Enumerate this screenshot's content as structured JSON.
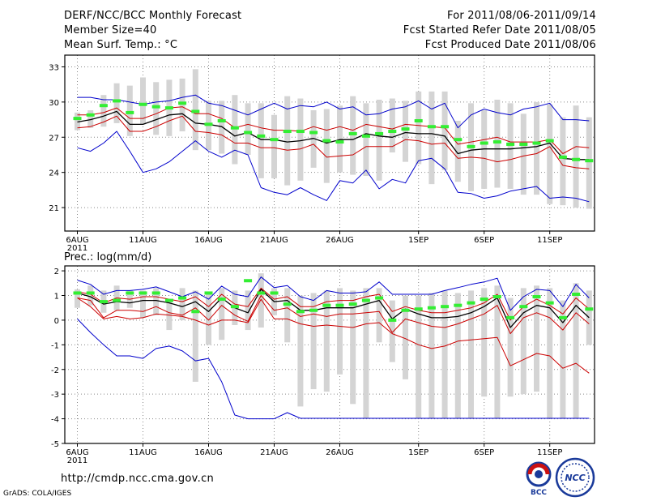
{
  "header": {
    "title": "DERF/NCC/BCC Monthly Forecast",
    "member_size": "Member Size=40",
    "variable": "Mean Surf. Temp.: °C",
    "period": "For 2011/08/06-2011/09/14",
    "started": "Fcst Started Refer Date 2011/08/05",
    "produced": "Fcst Produced Date 2011/08/06"
  },
  "footer": {
    "url": "http://cmdp.ncc.cma.gov.cn",
    "credit": "GrADS: COLA/IGES"
  },
  "logos": {
    "bcc": "BCC",
    "ncc": "NCC"
  },
  "colors": {
    "max_min": "#0000cc",
    "spread": "#cc0000",
    "mean": "#000000",
    "median": "#33ee33",
    "box": "#d4d4d4",
    "grid": "#888888"
  },
  "chart_data": [
    {
      "type": "line",
      "name": "temperature",
      "ylabel": "Mean Surf. Temp.: °C",
      "ylim": [
        19,
        34
      ],
      "yticks": [
        21,
        24,
        27,
        30,
        33
      ],
      "xlim": [
        0,
        39.5
      ],
      "xticks": [
        {
          "day": 0,
          "label": "6AUG",
          "sub": "2011"
        },
        {
          "day": 5,
          "label": "11AUG"
        },
        {
          "day": 10,
          "label": "16AUG"
        },
        {
          "day": 15,
          "label": "21AUG"
        },
        {
          "day": 20,
          "label": "26AUG"
        },
        {
          "day": 26,
          "label": "1SEP"
        },
        {
          "day": 31,
          "label": "6SEP"
        },
        {
          "day": 36,
          "label": "11SEP"
        }
      ],
      "grid": true,
      "max": [
        30.4,
        30.4,
        30.2,
        30.2,
        30.0,
        29.8,
        30.0,
        30.1,
        30.4,
        30.6,
        29.9,
        29.7,
        29.3,
        28.9,
        29.4,
        29.9,
        29.4,
        29.7,
        29.6,
        30.0,
        29.4,
        29.6,
        28.9,
        29.0,
        29.4,
        29.6,
        30.1,
        29.4,
        29.9,
        27.8,
        28.9,
        29.4,
        29.1,
        28.9,
        29.4,
        29.6,
        29.9,
        28.5,
        28.5,
        28.4
      ],
      "upper": [
        28.9,
        28.9,
        29.1,
        29.5,
        28.6,
        28.6,
        29.0,
        29.5,
        29.6,
        29.0,
        29.0,
        28.6,
        27.8,
        28.1,
        27.8,
        27.6,
        27.6,
        27.5,
        27.9,
        27.6,
        27.9,
        27.6,
        28.1,
        27.9,
        27.7,
        28.1,
        28.0,
        27.9,
        27.8,
        26.4,
        26.6,
        26.8,
        27.0,
        26.6,
        26.6,
        26.6,
        26.8,
        25.6,
        26.2,
        26.1
      ],
      "mean": [
        28.3,
        28.5,
        28.8,
        29.2,
        28.1,
        28.1,
        28.5,
        28.9,
        29.0,
        28.2,
        28.1,
        27.9,
        27.1,
        27.4,
        26.8,
        26.8,
        26.6,
        26.7,
        26.9,
        26.5,
        26.8,
        26.8,
        27.3,
        27.1,
        27.0,
        27.4,
        27.3,
        27.3,
        27.1,
        25.6,
        25.9,
        26.0,
        26.0,
        26.0,
        26.1,
        26.2,
        26.5,
        25.2,
        25.1,
        25.1
      ],
      "lower": [
        27.8,
        27.9,
        28.3,
        28.8,
        27.5,
        27.5,
        27.9,
        28.4,
        28.8,
        27.5,
        27.4,
        27.2,
        26.5,
        26.5,
        26.1,
        26.1,
        25.9,
        26.0,
        26.4,
        25.3,
        25.4,
        25.5,
        26.2,
        26.2,
        26.2,
        26.8,
        26.7,
        26.4,
        26.5,
        25.2,
        25.3,
        25.2,
        24.9,
        25.1,
        25.4,
        25.6,
        26.2,
        24.6,
        24.4,
        24.3
      ],
      "min": [
        26.1,
        25.8,
        26.5,
        27.5,
        25.8,
        24.0,
        24.3,
        24.9,
        25.8,
        26.7,
        25.8,
        25.3,
        25.9,
        25.5,
        22.7,
        22.3,
        22.1,
        22.7,
        22.1,
        21.6,
        23.3,
        23.1,
        24.2,
        22.6,
        23.4,
        23.1,
        25.0,
        25.2,
        24.3,
        22.3,
        22.2,
        21.8,
        22.0,
        22.4,
        22.6,
        22.8,
        21.8,
        21.9,
        21.8,
        21.5
      ],
      "median": [
        28.6,
        28.9,
        29.7,
        30.1,
        29.1,
        29.8,
        29.6,
        29.5,
        29.9,
        29.2,
        28.1,
        28.4,
        27.8,
        27.4,
        27.1,
        26.8,
        27.5,
        27.5,
        27.4,
        26.7,
        26.6,
        27.3,
        27.1,
        27.3,
        27.5,
        27.7,
        28.4,
        27.9,
        27.9,
        26.8,
        26.2,
        26.5,
        26.6,
        26.4,
        26.4,
        26.5,
        26.7,
        25.3,
        25.1,
        25.0
      ],
      "box_high": [
        29.1,
        29.3,
        30.6,
        31.6,
        31.4,
        32.1,
        31.7,
        31.9,
        32.0,
        32.8,
        30.1,
        30.1,
        30.6,
        29.9,
        29.9,
        28.9,
        30.5,
        30.3,
        29.3,
        29.4,
        29.7,
        30.5,
        29.9,
        30.2,
        30.3,
        30.1,
        30.9,
        30.9,
        30.9,
        28.4,
        29.9,
        29.3,
        30.2,
        29.9,
        29.0,
        30.0,
        29.8,
        28.7,
        29.7,
        28.7
      ],
      "box_low": [
        27.6,
        27.8,
        27.9,
        28.2,
        27.1,
        28.1,
        27.2,
        27.1,
        27.5,
        25.9,
        25.9,
        25.6,
        24.7,
        25.5,
        23.5,
        23.5,
        22.9,
        23.3,
        24.4,
        23.1,
        24.0,
        23.8,
        23.7,
        23.3,
        25.7,
        24.9,
        24.7,
        23.0,
        24.2,
        23.2,
        22.4,
        22.6,
        22.7,
        22.6,
        22.1,
        22.1,
        21.3,
        21.2,
        21.0,
        20.9
      ]
    },
    {
      "type": "line",
      "name": "precipitation",
      "ylabel": "Prec.: log(mm/d)",
      "ylim": [
        -5,
        2.2
      ],
      "yticks": [
        -5,
        -4,
        -3,
        -2,
        -1,
        0,
        1,
        2
      ],
      "xlim": [
        0,
        39.5
      ],
      "xticks": [
        {
          "day": 0,
          "label": "6AUG",
          "sub": "2011"
        },
        {
          "day": 5,
          "label": "11AUG"
        },
        {
          "day": 10,
          "label": "16AUG"
        },
        {
          "day": 15,
          "label": "21AUG"
        },
        {
          "day": 20,
          "label": "26AUG"
        },
        {
          "day": 26,
          "label": "1SEP"
        },
        {
          "day": 31,
          "label": "6SEP"
        },
        {
          "day": 36,
          "label": "11SEP"
        }
      ],
      "grid": true,
      "max": [
        1.62,
        1.45,
        1.05,
        1.2,
        1.2,
        1.25,
        1.35,
        1.15,
        0.95,
        1.15,
        0.85,
        1.38,
        1.05,
        0.95,
        1.75,
        1.32,
        1.4,
        0.95,
        0.8,
        1.2,
        1.1,
        1.1,
        1.15,
        1.55,
        1.05,
        1.05,
        1.05,
        1.05,
        1.2,
        1.32,
        1.45,
        1.55,
        1.7,
        0.4,
        0.95,
        1.25,
        1.2,
        0.55,
        1.45,
        0.9
      ],
      "upper": [
        1.15,
        1.05,
        0.7,
        0.9,
        0.85,
        0.95,
        0.95,
        0.85,
        0.75,
        0.95,
        0.55,
        1.05,
        0.65,
        0.55,
        1.3,
        0.85,
        0.95,
        0.55,
        0.55,
        0.75,
        0.8,
        0.8,
        0.95,
        1.05,
        0.35,
        0.55,
        0.4,
        0.3,
        0.3,
        0.4,
        0.5,
        0.7,
        1.05,
        0.0,
        0.55,
        0.85,
        0.6,
        0.25,
        0.9,
        0.45
      ],
      "mean": [
        1.1,
        0.95,
        0.65,
        0.75,
        0.7,
        0.8,
        0.8,
        0.7,
        0.55,
        0.75,
        0.35,
        0.9,
        0.5,
        0.3,
        1.25,
        0.75,
        0.8,
        0.4,
        0.4,
        0.5,
        0.5,
        0.5,
        0.65,
        0.8,
        0.05,
        0.45,
        0.25,
        0.1,
        0.1,
        0.15,
        0.3,
        0.55,
        0.9,
        -0.3,
        0.3,
        0.6,
        0.5,
        -0.1,
        0.6,
        0.1
      ],
      "lower": [
        0.9,
        0.8,
        0.1,
        0.4,
        0.4,
        0.35,
        0.55,
        0.3,
        0.2,
        0.5,
        0.0,
        0.6,
        0.2,
        -0.05,
        1.0,
        0.4,
        0.5,
        0.15,
        0.25,
        0.15,
        0.25,
        0.25,
        0.3,
        0.35,
        -0.5,
        0.05,
        -0.1,
        -0.25,
        -0.3,
        -0.15,
        0.05,
        0.25,
        0.6,
        -0.55,
        0.1,
        0.3,
        0.1,
        -0.4,
        0.3,
        -0.15
      ],
      "min": [
        0.05,
        -0.5,
        -1.0,
        -1.45,
        -1.45,
        -1.55,
        -1.15,
        -1.05,
        -1.25,
        -1.65,
        -1.55,
        -2.5,
        -3.85,
        -4.0,
        -4.0,
        -4.0,
        -3.75,
        -3.98,
        -3.98,
        -3.98,
        -3.98,
        -3.98,
        -3.98,
        -3.98,
        -3.98,
        -3.98,
        -3.98,
        -3.98,
        -3.98,
        -3.98,
        -3.98,
        -3.98,
        -3.98,
        -3.98,
        -3.98,
        -3.98,
        -3.98,
        -3.98,
        -3.98,
        -3.98
      ],
      "spread_low": [
        0.9,
        0.55,
        0.05,
        0.15,
        0.05,
        0.1,
        0.25,
        0.2,
        0.15,
        0.0,
        -0.2,
        0.0,
        0.0,
        -0.1,
        0.85,
        0.05,
        0.05,
        -0.15,
        -0.25,
        -0.2,
        -0.25,
        -0.3,
        -0.15,
        -0.1,
        -0.55,
        -0.75,
        -1.0,
        -1.15,
        -1.05,
        -0.85,
        -0.8,
        -0.75,
        -0.7,
        -1.85,
        -1.6,
        -1.35,
        -1.45,
        -1.95,
        -1.75,
        -2.15
      ],
      "median": [
        1.1,
        1.1,
        0.75,
        0.8,
        1.1,
        1.1,
        1.1,
        0.8,
        0.9,
        0.35,
        1.1,
        0.85,
        0.55,
        1.6,
        1.1,
        1.1,
        0.65,
        0.35,
        0.4,
        0.6,
        0.6,
        0.65,
        0.8,
        0.9,
        0.0,
        0.4,
        0.45,
        0.5,
        0.55,
        0.6,
        0.7,
        0.85,
        0.95,
        0.1,
        0.55,
        0.95,
        0.7,
        0.1,
        1.05,
        0.45
      ],
      "box_high": [
        1.25,
        1.4,
        1.2,
        1.4,
        1.2,
        1.2,
        1.3,
        0.8,
        1.3,
        1.2,
        1.1,
        1.3,
        1.2,
        1.2,
        1.9,
        1.3,
        1.3,
        1.0,
        1.1,
        1.2,
        1.3,
        1.2,
        1.3,
        1.3,
        0.8,
        1.0,
        1.0,
        1.1,
        1.2,
        1.1,
        1.2,
        1.3,
        1.4,
        0.9,
        1.3,
        1.4,
        1.3,
        0.8,
        1.5,
        1.2
      ],
      "box_low": [
        0.5,
        0.6,
        0.3,
        0.4,
        0.5,
        0.1,
        0.2,
        -0.4,
        0.0,
        -2.5,
        -1.0,
        -0.8,
        -0.2,
        -0.4,
        -0.3,
        0.2,
        -0.9,
        -3.5,
        -2.8,
        -2.9,
        -2.2,
        -3.4,
        -4.0,
        -0.9,
        -1.7,
        -2.4,
        -4.0,
        -4.0,
        -4.0,
        -4.0,
        -4.0,
        -3.1,
        -4.0,
        -3.1,
        -3.0,
        -2.9,
        -4.0,
        -4.0,
        -4.0,
        -1.0
      ]
    }
  ]
}
